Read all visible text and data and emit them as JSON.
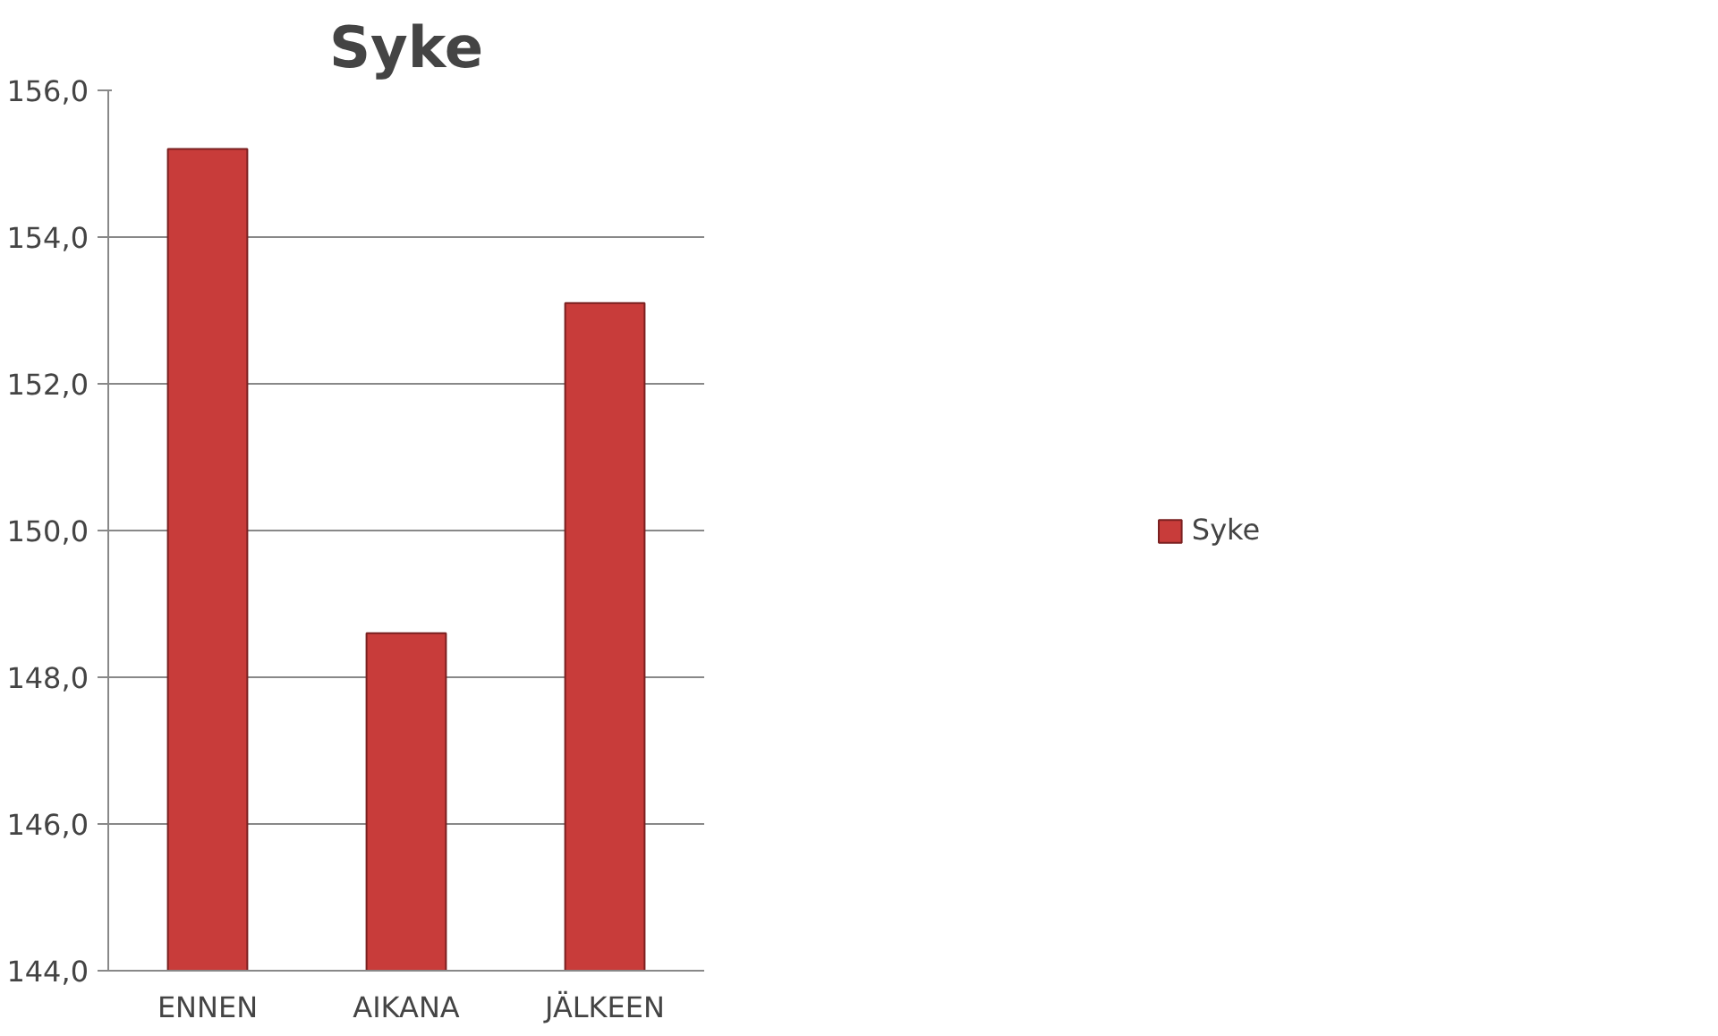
{
  "chart_data": {
    "type": "bar",
    "title": "Syke",
    "categories": [
      "ENNEN",
      "AIKANA",
      "JÄLKEEN"
    ],
    "series": [
      {
        "name": "Syke",
        "color": "#c83c3a",
        "values": [
          155.2,
          148.6,
          153.1
        ]
      }
    ],
    "ylim": [
      144,
      156
    ],
    "yticks": [
      {
        "value": 144,
        "label": "144,0"
      },
      {
        "value": 146,
        "label": "146,0"
      },
      {
        "value": 148,
        "label": "148,0"
      },
      {
        "value": 150,
        "label": "150,0"
      },
      {
        "value": 152,
        "label": "152,0"
      },
      {
        "value": 154,
        "label": "154,0"
      },
      {
        "value": 156,
        "label": "156,0"
      }
    ],
    "grid": "y",
    "legend": "right"
  }
}
